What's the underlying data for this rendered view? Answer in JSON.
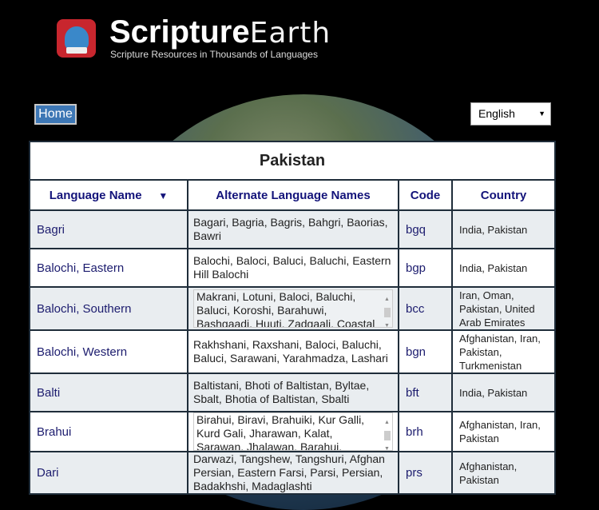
{
  "header": {
    "brand_bold": "Scripture",
    "brand_light": "Earth",
    "tagline": "Scripture Resources in Thousands of Languages",
    "home_label": "Home",
    "language_select": "English"
  },
  "table": {
    "title": "Pakistan",
    "columns": [
      "Language Name",
      "Alternate Language Names",
      "Code",
      "Country"
    ],
    "sort_icon": "▼",
    "rows": [
      {
        "name": "Bagri",
        "alt": "Bagari, Bagria, Bagris, Bahgri, Baorias, Bawri",
        "code": "bgq",
        "country": "India, Pakistan"
      },
      {
        "name": "Balochi, Eastern",
        "alt": "Balochi, Baloci, Baluci, Baluchi, Eastern Hill Balochi",
        "code": "bgp",
        "country": "India, Pakistan"
      },
      {
        "name": "Balochi, Southern",
        "alt": "Makrani, Lotuni, Baloci, Baluchi, Baluci, Koroshi, Barahuwi, Bashgaadi, Huuti, Zadgaali, Coastal Balochi,",
        "code": "bcc",
        "country": "Iran, Oman, Pakistan, United Arab Emirates",
        "scroll": true
      },
      {
        "name": "Balochi, Western",
        "alt": "Rakhshani, Raxshani, Baloci, Baluchi, Baluci, Sarawani, Yarahmadza, Lashari",
        "code": "bgn",
        "country": "Afghanistan, Iran, Pakistan, Turkmenistan"
      },
      {
        "name": "Balti",
        "alt": "Baltistani, Bhoti of Baltistan, Byltae, Sbalt, Bhotia of Baltistan, Sbalti",
        "code": "bft",
        "country": "India, Pakistan"
      },
      {
        "name": "Brahui",
        "alt": "Birahui, Biravi, Brahuiki, Kur Galli, Kurd Gali, Jharawan, Kalat, Sarawan, Jhalawan, Barahui, Brahudi, Brahuidi",
        "code": "brh",
        "country": "Afghanistan, Iran, Pakistan",
        "scroll": true
      },
      {
        "name": "Dari",
        "alt": "Darwazi, Tangshew, Tangshuri, Afghan Persian, Eastern Farsi, Parsi, Persian, Badakhshi, Madaglashti",
        "code": "prs",
        "country": "Afghanistan, Pakistan"
      }
    ]
  }
}
